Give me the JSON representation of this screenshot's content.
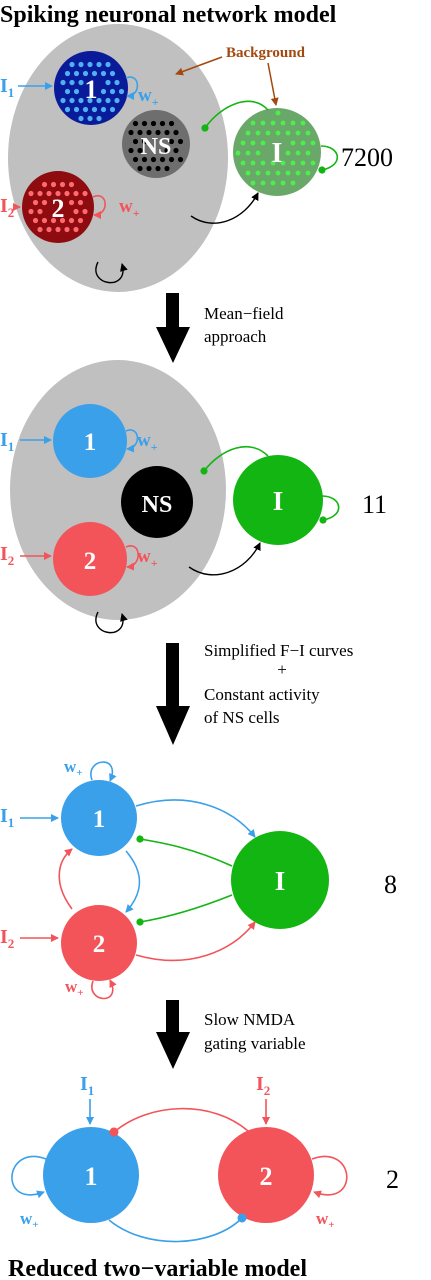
{
  "title_top": "Spiking neuronal network model",
  "title_bottom": "Reduced two−variable model",
  "colors": {
    "pop1": "#3aa0ea",
    "pop1_dark": "#0a1b9a",
    "pop2": "#f2545a",
    "pop2_dark": "#8e0b10",
    "inh": "#12b512",
    "inh_dark": "#6aa86a",
    "ns_black": "#000000",
    "ns_gray": "#6e6e6e",
    "bg_gray": "#c0c0c0",
    "background_label": "#a3480f",
    "arrow": "#000000"
  },
  "background_label": "Background",
  "nodes": {
    "pop1": "1",
    "pop2": "2",
    "ns": "NS",
    "inh": "I"
  },
  "inputs": {
    "i1_base": "I",
    "i1_sub": "1",
    "i2_base": "I",
    "i2_sub": "2"
  },
  "weight": {
    "base": "w",
    "sub": "+"
  },
  "counts": {
    "level1": "7200",
    "level2": "11",
    "level3": "8",
    "level4": "2"
  },
  "steps": {
    "step1": [
      "Mean−field",
      "approach"
    ],
    "step2": [
      "Simplified F−I curves",
      "+",
      "Constant activity",
      "of NS cells"
    ],
    "step3": [
      "Slow NMDA",
      "gating variable"
    ]
  }
}
